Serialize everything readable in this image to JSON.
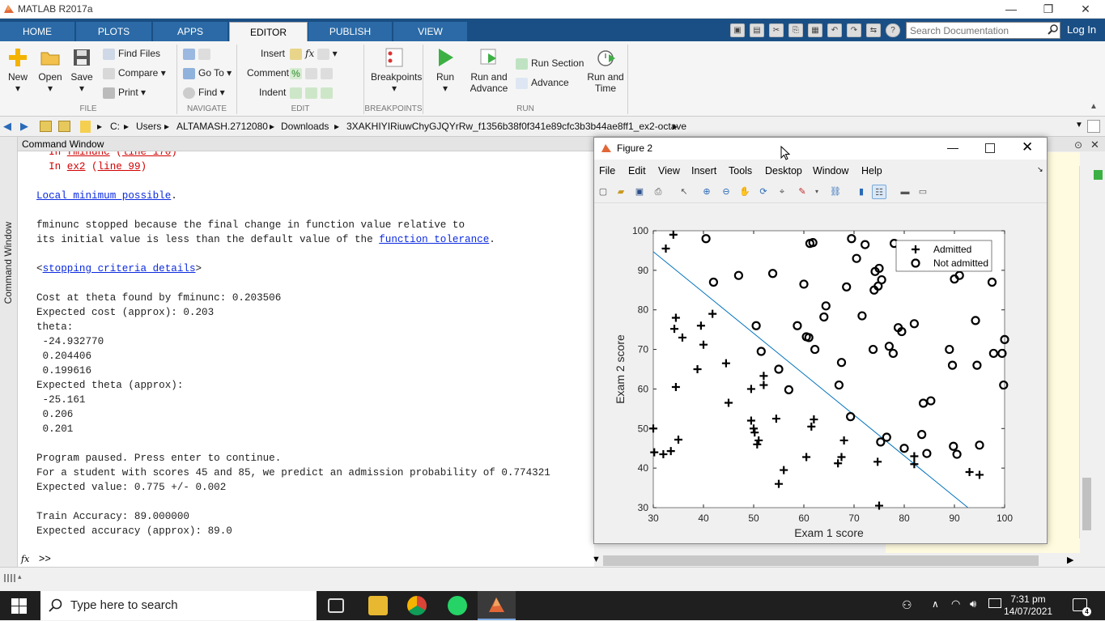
{
  "window": {
    "title": "MATLAB R2017a",
    "minimize": "—",
    "restore": "❐",
    "close": "✕"
  },
  "tabs": [
    "HOME",
    "PLOTS",
    "APPS",
    "EDITOR",
    "PUBLISH",
    "VIEW"
  ],
  "active_tab": "EDITOR",
  "search_doc": {
    "placeholder": "Search Documentation"
  },
  "login": "Log In",
  "ribbon": {
    "file": {
      "new": "New",
      "open": "Open",
      "save": "Save",
      "find_files": "Find Files",
      "compare": "Compare",
      "print": "Print",
      "group": "FILE"
    },
    "navigate": {
      "go_to": "Go To",
      "find": "Find",
      "group": "NAVIGATE"
    },
    "edit": {
      "insert": "Insert",
      "fx": "fx",
      "comment": "Comment",
      "indent": "Indent",
      "group": "EDIT"
    },
    "breakpoints": {
      "label": "Breakpoints",
      "group": "BREAKPOINTS"
    },
    "run": {
      "run": "Run",
      "run_and_advance_1": "Run and",
      "run_and_advance_2": "Advance",
      "run_section": "Run Section",
      "advance": "Advance",
      "run_and_time_1": "Run and",
      "run_and_time_2": "Time",
      "group": "RUN"
    }
  },
  "address": [
    "C:",
    "Users",
    "ALTAMASH.2712080",
    "Downloads",
    "3XAKHIYIRiuwChyGJQYrRw_f1356b38f0f341e89cfc3b3b44ae8ff1_ex2-octave"
  ],
  "side_label": "Command Window",
  "command_window": {
    "title": "Command Window",
    "lines": [
      {
        "k": "err",
        "parts": [
          [
            "  In ",
            "err"
          ],
          [
            "fminunc",
            "errl"
          ],
          [
            " (",
            "err"
          ],
          [
            "line 170",
            "errl"
          ],
          [
            ")",
            "err"
          ]
        ]
      },
      {
        "k": "err",
        "parts": [
          [
            "  In ",
            "err"
          ],
          [
            "ex2",
            "errl"
          ],
          [
            " (",
            "err"
          ],
          [
            "line 99",
            "errl"
          ],
          [
            ")",
            "err"
          ]
        ]
      },
      {
        "k": "blank",
        "parts": []
      },
      {
        "k": "txt",
        "parts": [
          [
            "Local minimum possible",
            "link"
          ],
          [
            ".",
            ""
          ]
        ]
      },
      {
        "k": "blank",
        "parts": []
      },
      {
        "k": "txt",
        "parts": [
          [
            "fminunc stopped because the final change in function value relative to",
            ""
          ]
        ]
      },
      {
        "k": "txt",
        "parts": [
          [
            "its initial value is less than the default value of the ",
            ""
          ],
          [
            "function tolerance",
            "link"
          ],
          [
            ".",
            ""
          ]
        ]
      },
      {
        "k": "blank",
        "parts": []
      },
      {
        "k": "txt",
        "parts": [
          [
            "<",
            ""
          ],
          [
            "stopping criteria details",
            "link"
          ],
          [
            ">",
            ""
          ]
        ]
      },
      {
        "k": "blank",
        "parts": []
      },
      {
        "k": "txt",
        "parts": [
          [
            "Cost at theta found by fminunc: 0.203506",
            ""
          ]
        ]
      },
      {
        "k": "txt",
        "parts": [
          [
            "Expected cost (approx): 0.203",
            ""
          ]
        ]
      },
      {
        "k": "txt",
        "parts": [
          [
            "theta:",
            ""
          ]
        ]
      },
      {
        "k": "txt",
        "parts": [
          [
            " -24.932770",
            ""
          ]
        ]
      },
      {
        "k": "txt",
        "parts": [
          [
            " 0.204406",
            ""
          ]
        ]
      },
      {
        "k": "txt",
        "parts": [
          [
            " 0.199616",
            ""
          ]
        ]
      },
      {
        "k": "txt",
        "parts": [
          [
            "Expected theta (approx):",
            ""
          ]
        ]
      },
      {
        "k": "txt",
        "parts": [
          [
            " -25.161",
            ""
          ]
        ]
      },
      {
        "k": "txt",
        "parts": [
          [
            " 0.206",
            ""
          ]
        ]
      },
      {
        "k": "txt",
        "parts": [
          [
            " 0.201",
            ""
          ]
        ]
      },
      {
        "k": "blank",
        "parts": []
      },
      {
        "k": "txt",
        "parts": [
          [
            "Program paused. Press enter to continue.",
            ""
          ]
        ]
      },
      {
        "k": "txt",
        "parts": [
          [
            "For a student with scores 45 and 85, we predict an admission probability of 0.774321",
            ""
          ]
        ]
      },
      {
        "k": "txt",
        "parts": [
          [
            "Expected value: 0.775 +/- 0.002",
            ""
          ]
        ]
      },
      {
        "k": "blank",
        "parts": []
      },
      {
        "k": "txt",
        "parts": [
          [
            "Train Accuracy: 89.000000",
            ""
          ]
        ]
      },
      {
        "k": "txt",
        "parts": [
          [
            "Expected accuracy (approx): 89.0",
            ""
          ]
        ]
      }
    ],
    "prompt": ">>",
    "fx": "fx"
  },
  "figure": {
    "title": "Figure 2",
    "menu": [
      "File",
      "Edit",
      "View",
      "Insert",
      "Tools",
      "Desktop",
      "Window",
      "Help"
    ]
  },
  "chart_data": {
    "type": "scatter",
    "xlabel": "Exam 1 score",
    "ylabel": "Exam 2 score",
    "xlim": [
      30,
      100
    ],
    "ylim": [
      30,
      100
    ],
    "xticks": [
      30,
      40,
      50,
      60,
      70,
      80,
      90,
      100
    ],
    "yticks": [
      30,
      40,
      50,
      60,
      70,
      80,
      90,
      100
    ],
    "legend_position": "top-right",
    "series": [
      {
        "name": "Admitted",
        "marker": "plus",
        "color": "#000000",
        "points": [
          [
            32.5,
            95.5
          ],
          [
            34,
            99
          ],
          [
            34.2,
            75.2
          ],
          [
            34.5,
            78
          ],
          [
            35.8,
            73
          ],
          [
            39.5,
            76
          ],
          [
            40,
            71.2
          ],
          [
            41.8,
            79
          ],
          [
            34.5,
            60.5
          ],
          [
            38.8,
            65
          ],
          [
            44.5,
            66.5
          ],
          [
            45,
            56.5
          ],
          [
            49.5,
            52
          ],
          [
            49.5,
            60
          ],
          [
            50,
            50
          ],
          [
            50.2,
            49
          ],
          [
            50.7,
            46
          ],
          [
            51,
            47
          ],
          [
            52,
            61
          ],
          [
            52,
            63.3
          ],
          [
            54.5,
            52.5
          ],
          [
            55,
            36
          ],
          [
            56,
            39.5
          ],
          [
            60.5,
            42.8
          ],
          [
            61.5,
            50.5
          ],
          [
            62,
            52.3
          ],
          [
            66.8,
            41.2
          ],
          [
            67.5,
            42.8
          ],
          [
            68,
            47
          ],
          [
            74.7,
            41.6
          ],
          [
            75,
            30.5
          ],
          [
            82,
            43
          ],
          [
            82,
            41
          ],
          [
            93,
            39
          ],
          [
            95,
            38.3
          ],
          [
            30,
            50
          ],
          [
            30.2,
            44
          ],
          [
            32,
            43.5
          ],
          [
            33.5,
            44.3
          ],
          [
            35,
            47.2
          ]
        ]
      },
      {
        "name": "Not admitted",
        "marker": "circle",
        "color": "#000000",
        "points": [
          [
            40.5,
            98
          ],
          [
            42,
            87
          ],
          [
            47,
            88.7
          ],
          [
            50.5,
            76
          ],
          [
            51.5,
            69.5
          ],
          [
            53.8,
            89.2
          ],
          [
            55,
            65
          ],
          [
            57,
            59.8
          ],
          [
            58.7,
            76
          ],
          [
            60,
            86.5
          ],
          [
            60.5,
            73.2
          ],
          [
            61,
            73
          ],
          [
            61.2,
            96.8
          ],
          [
            61.8,
            97
          ],
          [
            62.2,
            70
          ],
          [
            64,
            78.2
          ],
          [
            64.4,
            81
          ],
          [
            67,
            61
          ],
          [
            67.5,
            66.7
          ],
          [
            68.5,
            85.8
          ],
          [
            69.3,
            53
          ],
          [
            69.5,
            98
          ],
          [
            70.5,
            93
          ],
          [
            71.6,
            78.5
          ],
          [
            72.2,
            96.5
          ],
          [
            73.8,
            70
          ],
          [
            74,
            85
          ],
          [
            74.2,
            89.7
          ],
          [
            74.8,
            86
          ],
          [
            75,
            90.5
          ],
          [
            75.3,
            46.6
          ],
          [
            75.5,
            87.6
          ],
          [
            76.5,
            47.8
          ],
          [
            77,
            70.8
          ],
          [
            77.8,
            69
          ],
          [
            78,
            96.8
          ],
          [
            78.8,
            75.5
          ],
          [
            79.5,
            74.5
          ],
          [
            80,
            45
          ],
          [
            82,
            76.5
          ],
          [
            83.5,
            48.5
          ],
          [
            83.8,
            56.4
          ],
          [
            84.5,
            43.7
          ],
          [
            85.3,
            57
          ],
          [
            89,
            70
          ],
          [
            89.6,
            66
          ],
          [
            89.8,
            45.5
          ],
          [
            90,
            87.8
          ],
          [
            90.5,
            43.5
          ],
          [
            91,
            88.7
          ],
          [
            94.2,
            77.3
          ],
          [
            94.5,
            66
          ],
          [
            95,
            45.8
          ],
          [
            97.5,
            87
          ],
          [
            97.8,
            69
          ],
          [
            99.5,
            69
          ],
          [
            99.8,
            61
          ],
          [
            100,
            72.5
          ]
        ]
      }
    ],
    "decision_boundary": {
      "color": "#0072bd",
      "x": [
        30,
        92.7
      ],
      "y": [
        94.7,
        30
      ]
    }
  },
  "clock": {
    "time": "7:31 pm",
    "date": "14/07/2021"
  },
  "taskbar": {
    "search_placeholder": "Type here to search"
  }
}
